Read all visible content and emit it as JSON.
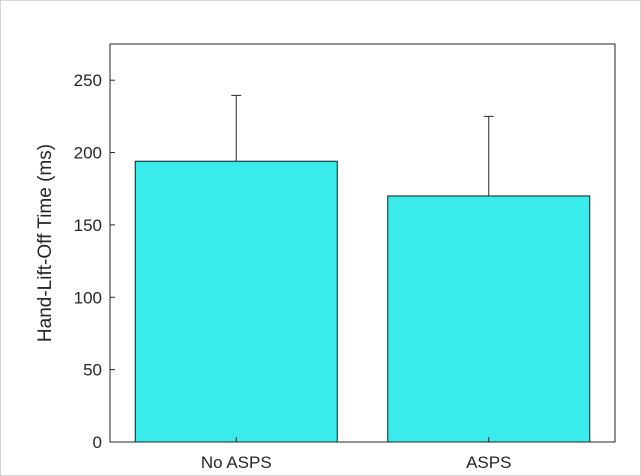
{
  "chart_data": {
    "type": "bar",
    "categories": [
      "No ASPS",
      "ASPS"
    ],
    "values": [
      194,
      170
    ],
    "error_upper": [
      239.5,
      225
    ],
    "title": "",
    "xlabel": "",
    "ylabel": "Hand-Lift-Off Time (ms)",
    "ylim": [
      0,
      275
    ],
    "yticks": [
      "0",
      "50",
      "100",
      "150",
      "200",
      "250"
    ],
    "grid": false,
    "bar_color": "#3AEBEB",
    "edge_color": "#1a1a1a"
  }
}
